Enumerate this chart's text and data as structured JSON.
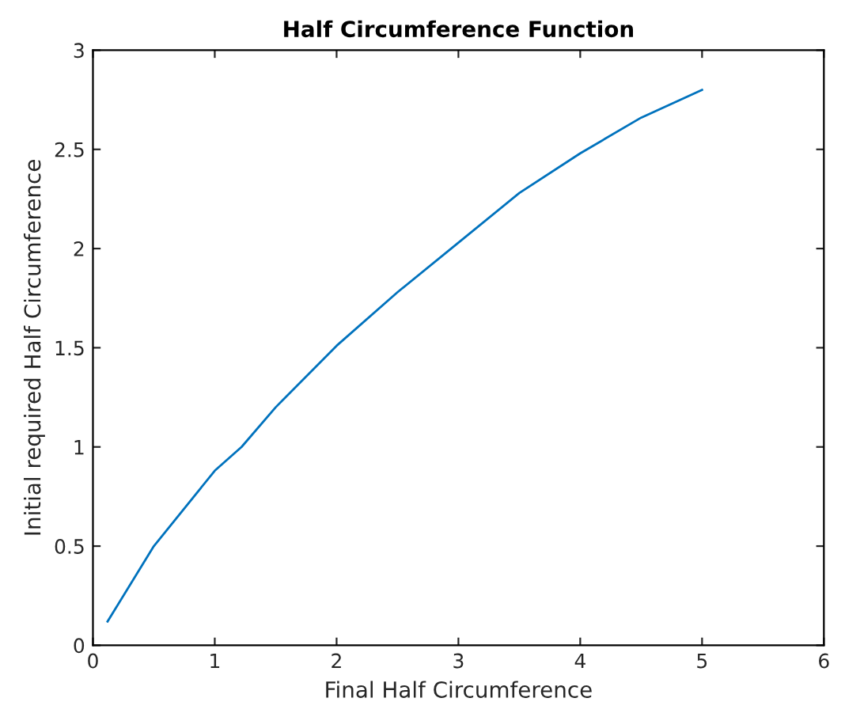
{
  "chart_data": {
    "type": "line",
    "title": "Half Circumference Function",
    "xlabel": "Final Half Circumference",
    "ylabel": "Initial required Half Circumference",
    "x": [
      0.12,
      0.5,
      1,
      1.22,
      1.5,
      2,
      2.5,
      3,
      3.5,
      4,
      4.5,
      5
    ],
    "series": [
      {
        "color": "#0072bd",
        "values": [
          0.12,
          0.5,
          0.88,
          1.0,
          1.2,
          1.51,
          1.78,
          2.03,
          2.28,
          2.48,
          2.66,
          2.8
        ]
      }
    ],
    "xlim": [
      0,
      6
    ],
    "xticks": [
      0,
      1,
      2,
      3,
      4,
      5,
      6
    ],
    "ylim": [
      0,
      3
    ],
    "yticks": [
      0,
      0.5,
      1,
      1.5,
      2,
      2.5,
      3
    ],
    "grid": false,
    "legend": false
  }
}
